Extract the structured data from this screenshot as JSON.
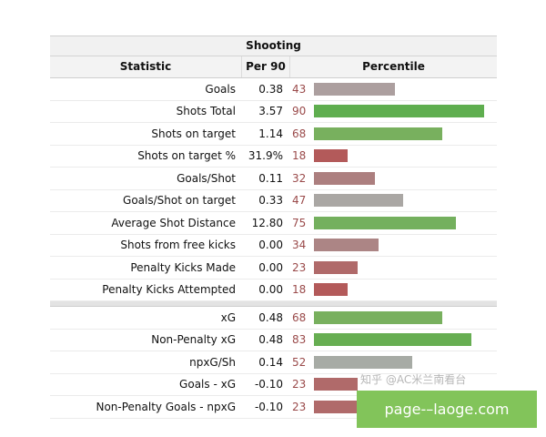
{
  "table": {
    "title": "Shooting",
    "columns": {
      "statistic": "Statistic",
      "per90": "Per 90",
      "percentile": "Percentile"
    },
    "groups": [
      [
        {
          "statistic": "Goals",
          "per90": "0.38",
          "percentile": 43,
          "color": "#ac9f9f"
        },
        {
          "statistic": "Shots Total",
          "per90": "3.57",
          "percentile": 90,
          "color": "#5fae4f"
        },
        {
          "statistic": "Shots on target",
          "per90": "1.14",
          "percentile": 68,
          "color": "#78b05e"
        },
        {
          "statistic": "Shots on target %",
          "per90": "31.9%",
          "percentile": 18,
          "color": "#b35a5a"
        },
        {
          "statistic": "Goals/Shot",
          "per90": "0.11",
          "percentile": 32,
          "color": "#ac7f7f"
        },
        {
          "statistic": "Goals/Shot on target",
          "per90": "0.33",
          "percentile": 47,
          "color": "#aaa7a4"
        },
        {
          "statistic": "Average Shot Distance",
          "per90": "12.80",
          "percentile": 75,
          "color": "#74b05e"
        },
        {
          "statistic": "Shots from free kicks",
          "per90": "0.00",
          "percentile": 34,
          "color": "#ac8585"
        },
        {
          "statistic": "Penalty Kicks Made",
          "per90": "0.00",
          "percentile": 23,
          "color": "#b06a6a"
        },
        {
          "statistic": "Penalty Kicks Attempted",
          "per90": "0.00",
          "percentile": 18,
          "color": "#b35a5a"
        }
      ],
      [
        {
          "statistic": "xG",
          "per90": "0.48",
          "percentile": 68,
          "color": "#78b05e"
        },
        {
          "statistic": "Non-Penalty xG",
          "per90": "0.48",
          "percentile": 83,
          "color": "#67ae52"
        },
        {
          "statistic": "npxG/Sh",
          "per90": "0.14",
          "percentile": 52,
          "color": "#a7aba5"
        },
        {
          "statistic": "Goals - xG",
          "per90": "-0.10",
          "percentile": 23,
          "color": "#b06a6a"
        },
        {
          "statistic": "Non-Penalty Goals - npxG",
          "per90": "-0.10",
          "percentile": 23,
          "color": "#b06a6a"
        }
      ]
    ]
  },
  "watermark": "知乎 @AC米兰南看台",
  "site_banner": "page-–laoge.com"
}
